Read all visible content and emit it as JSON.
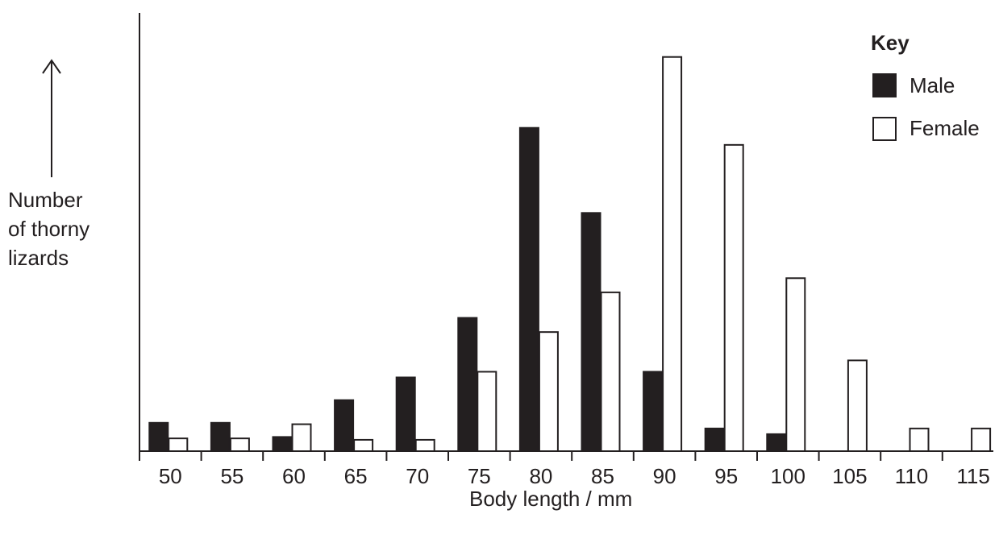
{
  "chart_data": {
    "type": "bar",
    "xlabel": "Body length / mm",
    "ylabel": [
      "Number",
      "of thorny",
      "lizards"
    ],
    "categories": [
      "50",
      "55",
      "60",
      "65",
      "70",
      "75",
      "80",
      "85",
      "90",
      "95",
      "100",
      "105",
      "110",
      "115"
    ],
    "series": [
      {
        "name": "Male",
        "color": "#231f20",
        "values": [
          2,
          2,
          1,
          3.6,
          5.2,
          9.4,
          22.8,
          16.8,
          5.6,
          1.6,
          1.2,
          0,
          0,
          0
        ]
      },
      {
        "name": "Female",
        "color": "#ffffff",
        "values": [
          0.9,
          0.9,
          1.9,
          0.8,
          0.8,
          5.6,
          8.4,
          11.2,
          27.8,
          21.6,
          12.2,
          6.4,
          1.6,
          1.6
        ]
      }
    ],
    "ylim": [
      0,
      30
    ],
    "y_axis_ticks": false,
    "grid": false,
    "legend": {
      "title": "Key",
      "placement": "top-right"
    }
  }
}
